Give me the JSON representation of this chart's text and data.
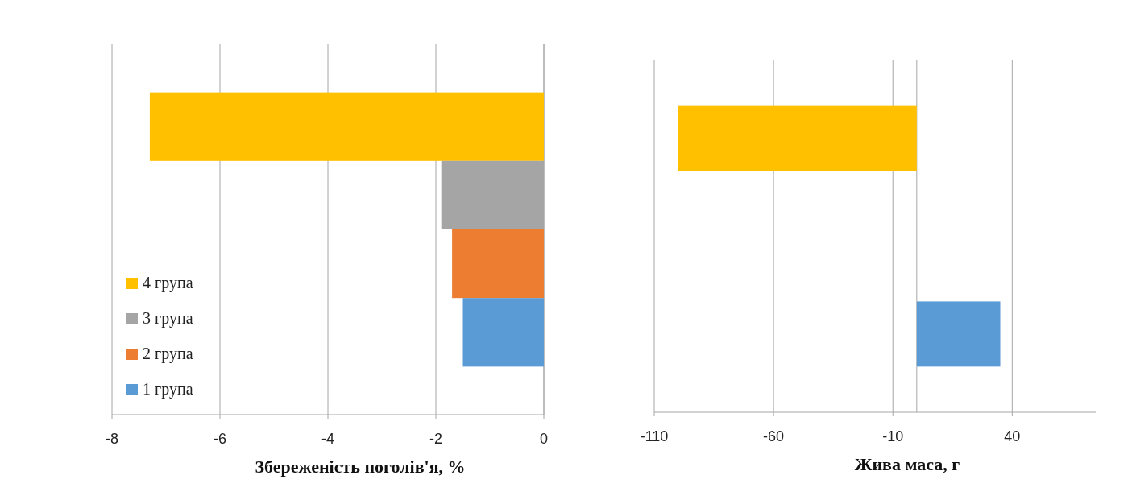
{
  "chart_data": [
    {
      "type": "bar",
      "orientation": "horizontal",
      "xlabel": "Збереженість поголів'я, %",
      "categories": [
        null
      ],
      "xlim": [
        -8,
        0
      ],
      "xticks": [
        -8,
        -6,
        -4,
        -2,
        0
      ],
      "grid": "x",
      "legend": "bottom left",
      "series": [
        {
          "name": "4 група",
          "color": "#ffc000",
          "values": [
            -7.3
          ]
        },
        {
          "name": "3 група",
          "color": "#a5a5a5",
          "values": [
            -1.9
          ]
        },
        {
          "name": "2 група",
          "color": "#ed7d31",
          "values": [
            -1.7
          ]
        },
        {
          "name": "1 група",
          "color": "#5b9bd5",
          "values": [
            -1.5
          ]
        }
      ]
    },
    {
      "type": "bar",
      "orientation": "horizontal",
      "xlabel": "Жива маса, г",
      "categories": [
        null
      ],
      "xlim": [
        -110,
        75
      ],
      "xticks": [
        -110,
        -60,
        -10,
        40
      ],
      "grid": "x",
      "series": [
        {
          "color": "#ffc000",
          "values": [
            -100
          ]
        },
        {
          "values": [
            null
          ]
        },
        {
          "values": [
            null
          ]
        },
        {
          "color": "#5b9bd5",
          "values": [
            35
          ]
        }
      ]
    }
  ]
}
